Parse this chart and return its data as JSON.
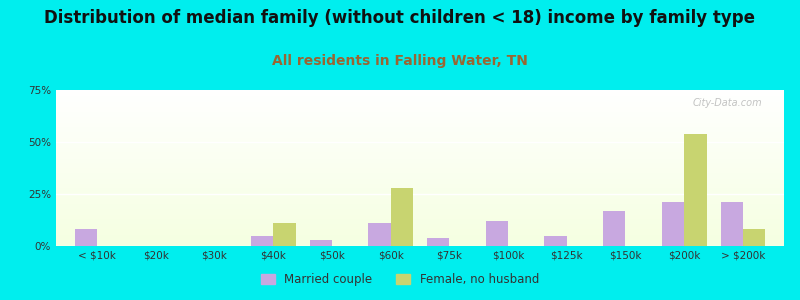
{
  "title": "Distribution of median family (without children < 18) income by family type",
  "subtitle": "All residents in Falling Water, TN",
  "categories": [
    "< $10k",
    "$20k",
    "$30k",
    "$40k",
    "$50k",
    "$60k",
    "$75k",
    "$100k",
    "$125k",
    "$150k",
    "$200k",
    "> $200k"
  ],
  "married_couple": [
    8,
    0,
    0,
    5,
    3,
    11,
    4,
    12,
    5,
    17,
    21,
    21
  ],
  "female_no_husband": [
    0,
    0,
    0,
    11,
    0,
    28,
    0,
    0,
    0,
    0,
    54,
    8
  ],
  "married_color": "#c8a8e0",
  "female_color": "#c8d470",
  "background_color": "#00eeee",
  "ylim": [
    0,
    75
  ],
  "yticks": [
    0,
    25,
    50,
    75
  ],
  "ytick_labels": [
    "0%",
    "25%",
    "50%",
    "75%"
  ],
  "title_fontsize": 12,
  "subtitle_fontsize": 10,
  "bar_width": 0.38,
  "subtitle_color": "#996633",
  "title_color": "#111111"
}
